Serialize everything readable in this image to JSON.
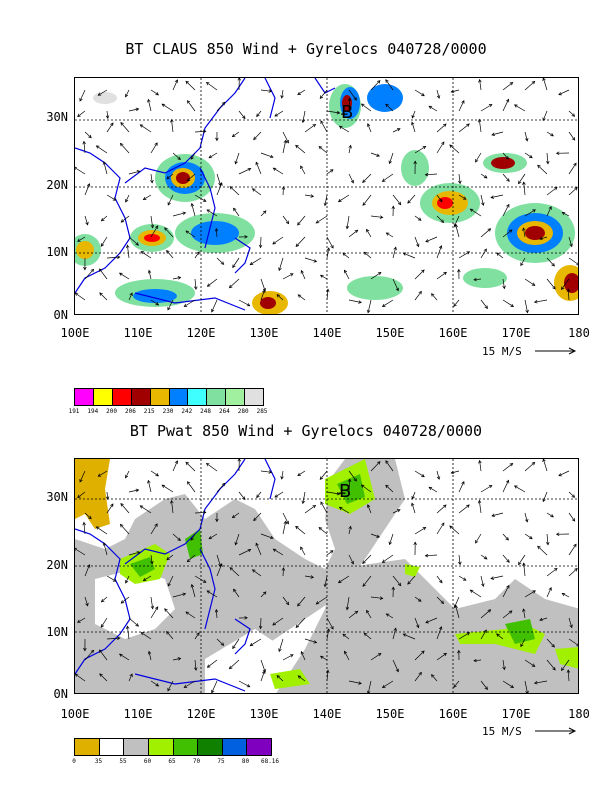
{
  "panels": [
    {
      "title": "BT CLAUS 850 Wind + Gyrelocs 040728/0000",
      "lat_labels": [
        "30N",
        "20N",
        "10N",
        "0N"
      ],
      "lon_labels": [
        "100E",
        "110E",
        "120E",
        "130E",
        "140E",
        "150E",
        "160E",
        "170E",
        "180"
      ],
      "scale_label": "15 M/S",
      "legend_colors": [
        "#ff00ff",
        "#ffff00",
        "#ff0000",
        "#a00000",
        "#e8b800",
        "#0080ff",
        "#40ffff",
        "#80e0a0",
        "#a0f0a0",
        "#e0e0e0"
      ],
      "legend_ticks": [
        "191",
        "194",
        "200",
        "206",
        "215",
        "230",
        "242",
        "248",
        "264",
        "280",
        "285"
      ]
    },
    {
      "title": "BT Pwat 850 Wind + Gyrelocs 040728/0000",
      "lat_labels": [
        "30N",
        "20N",
        "10N",
        "0N"
      ],
      "lon_labels": [
        "100E",
        "110E",
        "120E",
        "130E",
        "140E",
        "150E",
        "160E",
        "170E",
        "180"
      ],
      "scale_label": "15 M/S",
      "legend_colors": [
        "#e0b000",
        "#ffffff",
        "#c0c0c0",
        "#a0f000",
        "#40c000",
        "#108000",
        "#0060e0",
        "#8000c0"
      ],
      "legend_ticks": [
        "0",
        "35",
        "55",
        "60",
        "65",
        "70",
        "75",
        "80",
        "68.16"
      ]
    }
  ]
}
